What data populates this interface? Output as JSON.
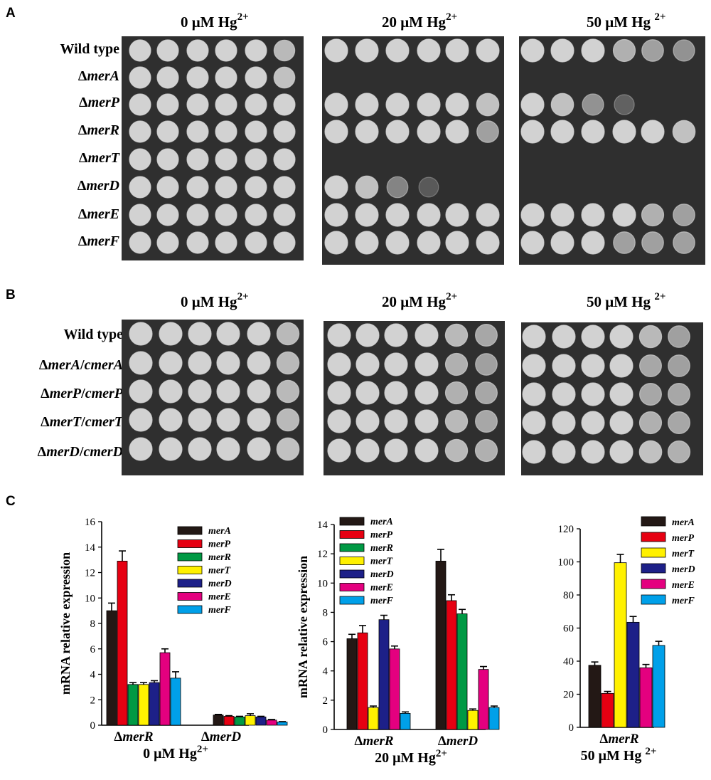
{
  "panel_a": {
    "letter": "A",
    "conditions": [
      {
        "base": "0 μM Hg",
        "sup": "2+"
      },
      {
        "base": "20 μM Hg",
        "sup": "2+"
      },
      {
        "base": "50 μM Hg ",
        "sup": "2+"
      }
    ],
    "strains": [
      {
        "prefix": "",
        "gene": "Wild type",
        "italic": false
      },
      {
        "prefix": "Δ",
        "gene": "merA",
        "italic": true
      },
      {
        "prefix": "Δ",
        "gene": "merP",
        "italic": true
      },
      {
        "prefix": "Δ",
        "gene": "merR",
        "italic": true
      },
      {
        "prefix": "Δ",
        "gene": "merT",
        "italic": true
      },
      {
        "prefix": "Δ",
        "gene": "merD",
        "italic": true
      },
      {
        "prefix": "Δ",
        "gene": "merE",
        "italic": true
      },
      {
        "prefix": "Δ",
        "gene": "merF",
        "italic": true
      }
    ],
    "spot_growth": [
      [
        [
          1,
          1,
          1,
          1,
          1,
          0.85
        ],
        [
          1,
          1,
          1,
          1,
          1,
          1
        ],
        [
          1,
          1,
          1,
          0.8,
          0.7,
          0.6
        ]
      ],
      [
        [
          1,
          1,
          1,
          1,
          1,
          0.9
        ],
        [
          0,
          0,
          0,
          0,
          0,
          0
        ],
        [
          0,
          0,
          0,
          0,
          0,
          0
        ]
      ],
      [
        [
          1,
          1,
          1,
          1,
          1,
          1
        ],
        [
          1,
          1,
          1,
          1,
          1,
          0.9
        ],
        [
          1,
          0.9,
          0.6,
          0.2,
          0,
          0
        ]
      ],
      [
        [
          1,
          1,
          1,
          1,
          1,
          1
        ],
        [
          1,
          1,
          1,
          1,
          1,
          0.7
        ],
        [
          1,
          1,
          1,
          1,
          1,
          0.9
        ]
      ],
      [
        [
          1,
          1,
          1,
          1,
          1,
          1
        ],
        [
          0,
          0,
          0,
          0,
          0,
          0
        ],
        [
          0,
          0,
          0,
          0,
          0,
          0
        ]
      ],
      [
        [
          1,
          1,
          1,
          1,
          1,
          1
        ],
        [
          1,
          0.9,
          0.5,
          0.1,
          0,
          0
        ],
        [
          0,
          0,
          0,
          0,
          0,
          0
        ]
      ],
      [
        [
          1,
          1,
          1,
          1,
          1,
          1
        ],
        [
          1,
          1,
          1,
          1,
          1,
          1
        ],
        [
          1,
          1,
          1,
          1,
          0.8,
          0.7
        ]
      ],
      [
        [
          1,
          1,
          1,
          1,
          1,
          1
        ],
        [
          1,
          1,
          1,
          1,
          1,
          1
        ],
        [
          1,
          1,
          1,
          0.7,
          0.7,
          0.7
        ]
      ]
    ]
  },
  "panel_b": {
    "letter": "B",
    "conditions": [
      {
        "base": "0 μM Hg",
        "sup": "2+"
      },
      {
        "base": "20 μM Hg",
        "sup": "2+"
      },
      {
        "base": "50 μM Hg ",
        "sup": "2+"
      }
    ],
    "strains": [
      {
        "prefix": "",
        "gene": "Wild type",
        "sep": "",
        "gene2": "",
        "italic": false
      },
      {
        "prefix": "Δ",
        "gene": "merA",
        "sep": "/",
        "gene2": "cmerA",
        "italic": true
      },
      {
        "prefix": "Δ",
        "gene": "merP",
        "sep": "/",
        "gene2": "cmerP",
        "italic": true
      },
      {
        "prefix": "Δ",
        "gene": "merT",
        "sep": "/",
        "gene2": "cmerT",
        "italic": true
      },
      {
        "prefix": "Δ",
        "gene": "merD",
        "sep": "/",
        "gene2": "cmerD",
        "italic": true
      }
    ],
    "spot_growth": [
      [
        [
          1,
          1,
          1,
          1,
          1,
          0.85
        ],
        [
          1,
          1,
          1,
          1,
          0.85,
          0.75
        ],
        [
          1,
          1,
          1,
          1,
          0.85,
          0.7
        ]
      ],
      [
        [
          1,
          1,
          1,
          1,
          1,
          0.85
        ],
        [
          1,
          1,
          1,
          1,
          0.8,
          0.7
        ],
        [
          1,
          1,
          1,
          1,
          0.75,
          0.7
        ]
      ],
      [
        [
          1,
          1,
          1,
          1,
          1,
          0.85
        ],
        [
          1,
          1,
          1,
          1,
          0.8,
          0.75
        ],
        [
          1,
          1,
          1,
          1,
          0.75,
          0.75
        ]
      ],
      [
        [
          1,
          1,
          1,
          1,
          1,
          0.85
        ],
        [
          1,
          1,
          1,
          1,
          0.85,
          0.75
        ],
        [
          1,
          1,
          1,
          1,
          0.8,
          0.75
        ]
      ],
      [
        [
          1,
          1,
          1,
          1,
          1,
          0.9
        ],
        [
          1,
          1,
          1,
          1,
          0.85,
          0.8
        ],
        [
          1,
          1,
          1,
          1,
          0.9,
          0.8
        ]
      ]
    ]
  },
  "panel_c": {
    "letter": "C",
    "colors": {
      "merA": "#231815",
      "merP": "#e60012",
      "merR": "#009944",
      "merT": "#fff100",
      "merD": "#1d2088",
      "merE": "#e4007f",
      "merF": "#00a0e9"
    },
    "chart_data": [
      {
        "type": "bar",
        "ylabel": "mRNA relative expression",
        "xlabel": {
          "base": "0 μM Hg",
          "sup": "2+"
        },
        "ylim": [
          0,
          16
        ],
        "yticks": [
          "0",
          "2",
          "4",
          "6",
          "8",
          "10",
          "12",
          "14",
          "16"
        ],
        "categories": [
          {
            "prefix": "Δ",
            "gene": "merR"
          },
          {
            "prefix": "Δ",
            "gene": "merD"
          }
        ],
        "legend": [
          "merA",
          "merP",
          "merR",
          "merT",
          "merD",
          "merE",
          "merF"
        ],
        "series": [
          {
            "name": "merA",
            "values": [
              9.0,
              0.8
            ],
            "errors": [
              0.6,
              0.05
            ]
          },
          {
            "name": "merP",
            "values": [
              12.9,
              0.7
            ],
            "errors": [
              0.8,
              0.05
            ]
          },
          {
            "name": "merR",
            "values": [
              3.2,
              0.65
            ],
            "errors": [
              0.15,
              0.05
            ]
          },
          {
            "name": "merT",
            "values": [
              3.2,
              0.75
            ],
            "errors": [
              0.15,
              0.15
            ]
          },
          {
            "name": "merD",
            "values": [
              3.35,
              0.65
            ],
            "errors": [
              0.15,
              0.05
            ]
          },
          {
            "name": "merE",
            "values": [
              5.7,
              0.4
            ],
            "errors": [
              0.3,
              0.05
            ]
          },
          {
            "name": "merF",
            "values": [
              3.7,
              0.25
            ],
            "errors": [
              0.5,
              0.03
            ]
          }
        ]
      },
      {
        "type": "bar",
        "ylabel": "mRNA relative expression",
        "xlabel": {
          "base": "20 μM Hg",
          "sup": "2+"
        },
        "ylim": [
          0,
          14
        ],
        "yticks": [
          "0",
          "2",
          "4",
          "6",
          "8",
          "10",
          "12",
          "14"
        ],
        "categories": [
          {
            "prefix": "Δ",
            "gene": "merR"
          },
          {
            "prefix": "Δ",
            "gene": "merD"
          }
        ],
        "legend": [
          "merA",
          "merP",
          "merR",
          "merT",
          "merD",
          "merE",
          "merF"
        ],
        "series": [
          {
            "name": "merA",
            "values": [
              6.2,
              11.5
            ],
            "errors": [
              0.3,
              0.8
            ]
          },
          {
            "name": "merP",
            "values": [
              6.6,
              8.8
            ],
            "errors": [
              0.5,
              0.4
            ]
          },
          {
            "name": "merR",
            "values": [
              null,
              7.9
            ],
            "errors": [
              0,
              0.3
            ]
          },
          {
            "name": "merT",
            "values": [
              1.5,
              1.3
            ],
            "errors": [
              0.1,
              0.1
            ]
          },
          {
            "name": "merD",
            "values": [
              7.5,
              null
            ],
            "errors": [
              0.3,
              0
            ]
          },
          {
            "name": "merE",
            "values": [
              5.5,
              4.1
            ],
            "errors": [
              0.2,
              0.2
            ]
          },
          {
            "name": "merF",
            "values": [
              1.1,
              1.5
            ],
            "errors": [
              0.1,
              0.1
            ]
          }
        ]
      },
      {
        "type": "bar",
        "ylabel": "",
        "xlabel": {
          "base": "50 μM Hg ",
          "sup": "2+"
        },
        "ylim": [
          0,
          120
        ],
        "yticks": [
          "0",
          "20",
          "40",
          "60",
          "80",
          "100",
          "120"
        ],
        "categories": [
          {
            "prefix": "Δ",
            "gene": "merR"
          }
        ],
        "legend": [
          "merA",
          "merP",
          "merT",
          "merD",
          "merE",
          "merF"
        ],
        "series": [
          {
            "name": "merA",
            "values": [
              37.5
            ],
            "errors": [
              2
            ]
          },
          {
            "name": "merP",
            "values": [
              20.5
            ],
            "errors": [
              1.2
            ]
          },
          {
            "name": "merT",
            "values": [
              99.5
            ],
            "errors": [
              5
            ]
          },
          {
            "name": "merD",
            "values": [
              63.5
            ],
            "errors": [
              3.5
            ]
          },
          {
            "name": "merE",
            "values": [
              36
            ],
            "errors": [
              2
            ]
          },
          {
            "name": "merF",
            "values": [
              49.5
            ],
            "errors": [
              2.5
            ]
          }
        ]
      }
    ]
  }
}
